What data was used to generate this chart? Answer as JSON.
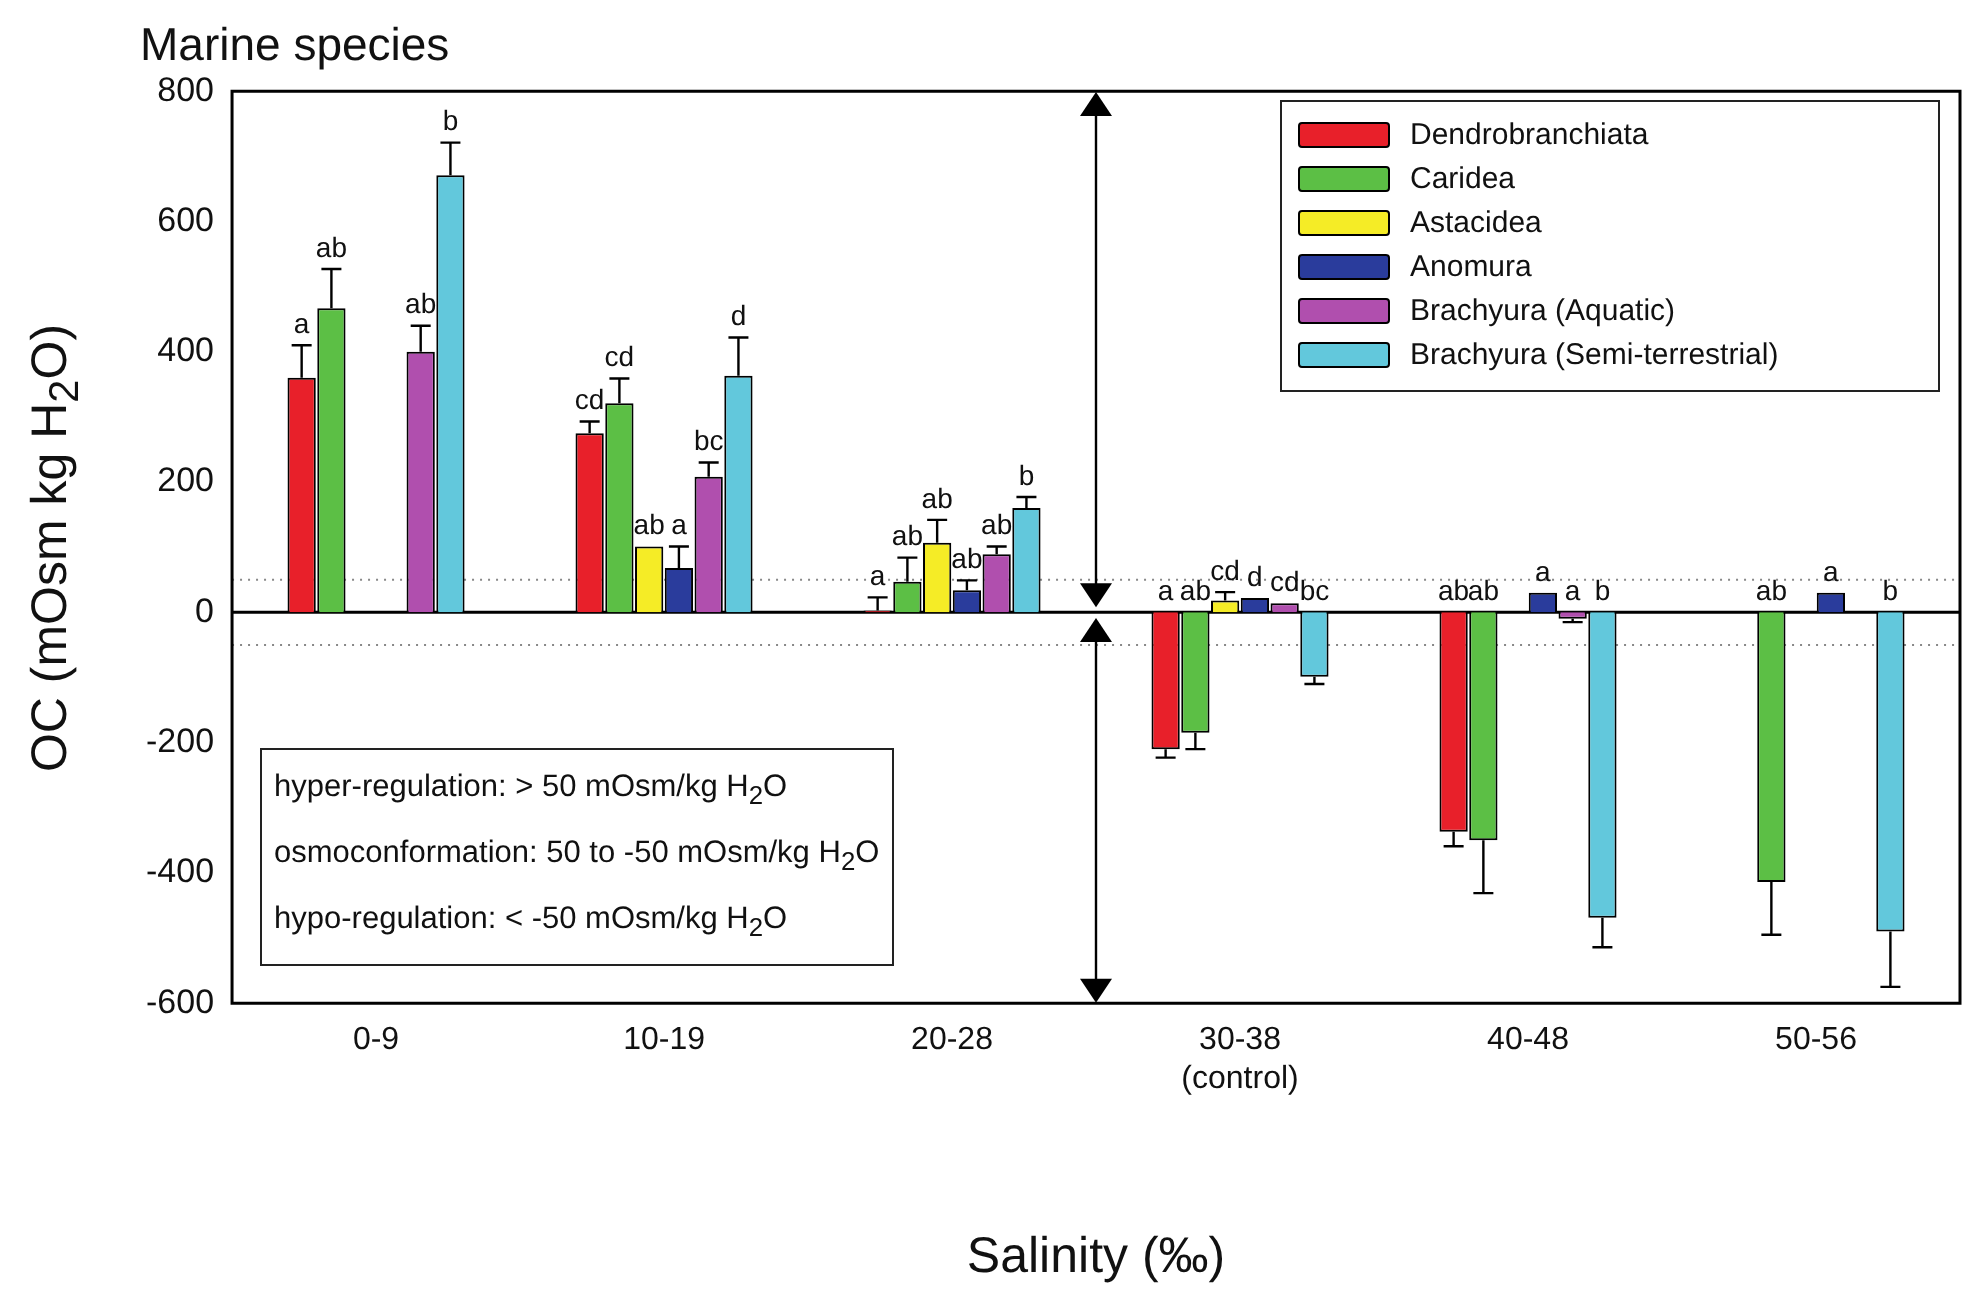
{
  "chart_data": {
    "type": "bar",
    "title": "Marine species",
    "xlabel": "Salinity (‰)",
    "ylabel": "OC (mOsm kg H$_{2}$O)",
    "categories": [
      "0-9",
      "10-19",
      "20-28",
      "30-38\n(control)",
      "40-48",
      "50-56"
    ],
    "series": [
      {
        "name": "Dendrobranchiata",
        "color": "#e8202a",
        "values": [
          360,
          275,
          3,
          -210,
          -337,
          null
        ],
        "errors": [
          50,
          18,
          20,
          13,
          22,
          null
        ],
        "value_labels": [
          "a",
          "cd",
          "a",
          "a",
          "ab",
          null
        ]
      },
      {
        "name": "Caridea",
        "color": "#5cbf45",
        "values": [
          467,
          321,
          47,
          -185,
          -350,
          -414
        ],
        "errors": [
          60,
          38,
          37,
          25,
          81,
          81
        ],
        "value_labels": [
          "ab",
          "cd",
          "ab",
          "ab",
          "ab",
          "ab"
        ]
      },
      {
        "name": "Astacidea",
        "color": "#f5ec26",
        "values": [
          null,
          101,
          107,
          18,
          null,
          null
        ],
        "errors": [
          null,
          null,
          35,
          13,
          null,
          null
        ],
        "value_labels": [
          null,
          "ab",
          "ab",
          "cd",
          null,
          null
        ]
      },
      {
        "name": "Anomura",
        "color": "#2a3c9c",
        "values": [
          null,
          68,
          34,
          22,
          30,
          30
        ],
        "errors": [
          null,
          33,
          15,
          null,
          null,
          null
        ],
        "value_labels": [
          null,
          "a",
          "ab",
          "d",
          "a",
          "a"
        ]
      },
      {
        "name": "Brachyura (Aquatic)",
        "color": "#b04fae",
        "values": [
          400,
          208,
          89,
          14,
          -10,
          null
        ],
        "errors": [
          40,
          22,
          12,
          null,
          5,
          null
        ],
        "value_labels": [
          "ab",
          "bc",
          "ab",
          "cd",
          "a",
          null
        ]
      },
      {
        "name": "Brachyura (Semi-terrestrial)",
        "color": "#62c8dc",
        "values": [
          671,
          363,
          160,
          -99,
          -469,
          -490
        ],
        "errors": [
          50,
          59,
          17,
          11,
          45,
          85
        ],
        "value_labels": [
          "b",
          "d",
          "b",
          "bc",
          "b",
          "b"
        ]
      }
    ],
    "ylim": [
      -600,
      800
    ],
    "yticks": [
      -600,
      -400,
      -200,
      0,
      200,
      400,
      600,
      800
    ],
    "grid": false,
    "legend": "top right",
    "ref_lines": [
      {
        "axis": "y",
        "value": 50,
        "color": "#888888",
        "line_style": "dotted"
      },
      {
        "axis": "y",
        "value": -50,
        "color": "#888888",
        "line_style": "dotted"
      }
    ],
    "annotations": [
      "hyper-regulation: > 50 mOsm/kg H$_{2}$O",
      "osmoconformation: 50 to -50 mOsm/kg H$_{2}$O",
      "hypo-regulation: < -50 mOsm/kg H$_{2}$O"
    ]
  }
}
